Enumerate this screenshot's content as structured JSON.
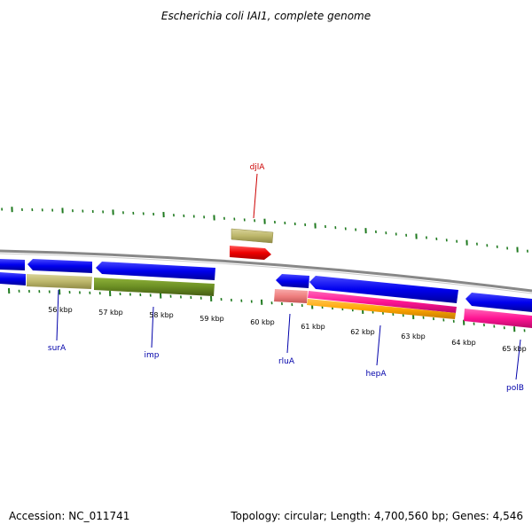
{
  "title": "Escherichia coli IAI1, complete genome",
  "footer": {
    "accession": "Accession: NC_011741",
    "topology": "Topology: circular; Length: 4,700,560 bp; Genes: 4,546"
  },
  "colors": {
    "backbone": "#888888",
    "tick_minor": "#1f7a1f",
    "blue": "#0000ee",
    "olive": "#6b8e23",
    "khaki": "#bdb76b",
    "red": "#ee0000",
    "pink": "#f08080",
    "magenta": "#ff1493",
    "orange": "#ffa500",
    "label_blue": "#0000aa",
    "label_red": "#cc0000"
  },
  "ticks": [
    "56 kbp",
    "57 kbp",
    "58 kbp",
    "59 kbp",
    "60 kbp",
    "61 kbp",
    "62 kbp",
    "63 kbp",
    "64 kbp",
    "65 kbp"
  ],
  "gene_labels": [
    {
      "name": "djlA",
      "color": "red"
    },
    {
      "name": "surA",
      "color": "blue"
    },
    {
      "name": "imp",
      "color": "blue"
    },
    {
      "name": "rluA",
      "color": "blue"
    },
    {
      "name": "hepA",
      "color": "blue"
    },
    {
      "name": "polB",
      "color": "blue"
    }
  ]
}
